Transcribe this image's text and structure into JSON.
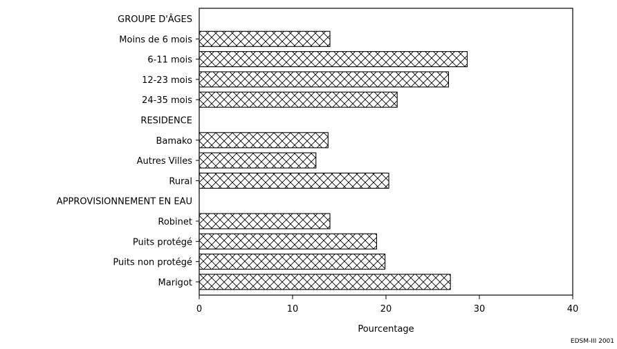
{
  "chart_data": {
    "type": "bar",
    "orientation": "horizontal",
    "xlabel": "Pourcentage",
    "xlim": [
      0,
      40
    ],
    "xticks": [
      0,
      10,
      20,
      30,
      40
    ],
    "grid": false,
    "bar_pattern": "crosshatch",
    "groups": [
      {
        "label": "GROUPE D'ÂGES",
        "categories": [
          {
            "label": "Moins de 6 mois",
            "value": 14
          },
          {
            "label": "6-11 mois",
            "value": 28.7
          },
          {
            "label": "12-23 mois",
            "value": 26.7
          },
          {
            "label": "24-35 mois",
            "value": 21.2
          }
        ]
      },
      {
        "label": "RESIDENCE",
        "categories": [
          {
            "label": "Bamako",
            "value": 13.8
          },
          {
            "label": "Autres Villes",
            "value": 12.5
          },
          {
            "label": "Rural",
            "value": 20.3
          }
        ]
      },
      {
        "label": "APPROVISIONNEMENT EN EAU",
        "categories": [
          {
            "label": "Robinet",
            "value": 14
          },
          {
            "label": "Puits protégé",
            "value": 19
          },
          {
            "label": "Puits non protégé",
            "value": 19.9
          },
          {
            "label": "Marigot",
            "value": 26.9
          }
        ]
      }
    ],
    "source_note": "EDSM-III 2001"
  }
}
